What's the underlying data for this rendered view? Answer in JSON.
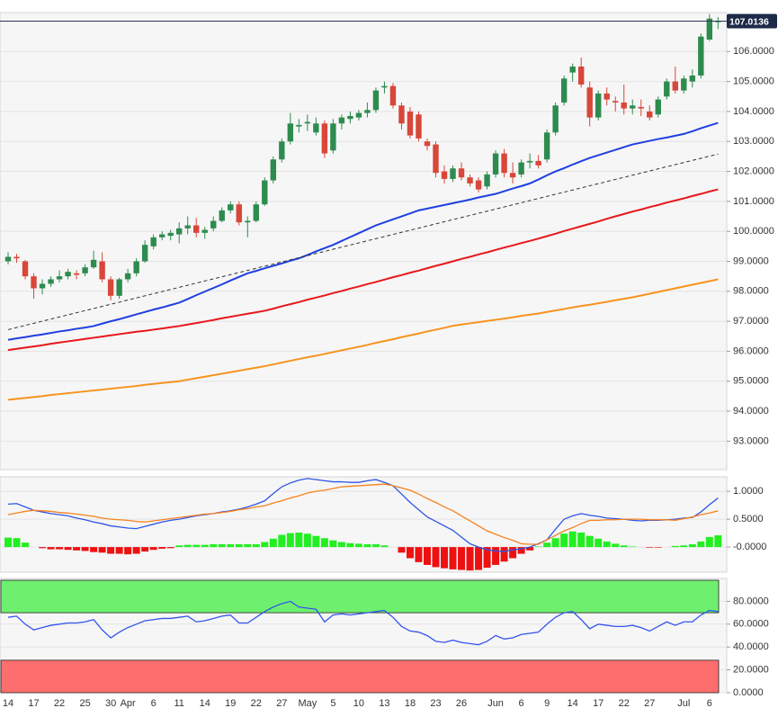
{
  "chart_data": [
    {
      "type": "candlestick",
      "open": [
        99.0,
        99.15,
        99.0,
        98.5,
        98.1,
        98.25,
        98.4,
        98.5,
        98.6,
        98.6,
        98.8,
        99.0,
        98.4,
        97.85,
        98.4,
        98.6,
        99.0,
        99.5,
        99.8,
        99.85,
        99.9,
        100.1,
        100.2,
        99.95,
        100.1,
        100.35,
        100.7,
        100.9,
        100.3,
        100.35,
        100.9,
        101.7,
        102.4,
        103.0,
        103.5,
        103.6,
        103.3,
        103.6,
        102.7,
        103.6,
        103.75,
        103.8,
        103.95,
        104.05,
        104.8,
        104.85,
        104.2,
        104.0,
        103.9,
        103.0,
        102.9,
        102.0,
        101.75,
        102.1,
        101.8,
        101.7,
        101.5,
        101.9,
        102.6,
        101.95,
        101.9,
        102.3,
        102.35,
        102.4,
        103.3,
        104.3,
        105.3,
        105.5,
        104.8,
        103.8,
        104.6,
        104.35,
        104.3,
        104.1,
        104.15,
        104.0,
        103.9,
        104.5,
        105.0,
        104.7,
        105.0,
        105.2,
        106.4,
        107.0
      ],
      "high": [
        99.3,
        99.25,
        99.05,
        98.6,
        98.4,
        98.5,
        98.7,
        98.75,
        98.7,
        98.9,
        99.35,
        99.3,
        98.5,
        98.45,
        98.75,
        99.1,
        99.7,
        99.9,
        100.0,
        100.05,
        100.3,
        100.5,
        100.45,
        100.15,
        100.5,
        100.8,
        101.0,
        101.0,
        100.5,
        101.0,
        101.8,
        102.5,
        103.1,
        103.95,
        103.75,
        103.9,
        103.8,
        103.7,
        103.75,
        103.9,
        104.0,
        104.05,
        104.3,
        104.8,
        105.0,
        104.95,
        104.3,
        104.15,
        104.0,
        103.1,
        103.0,
        102.2,
        102.2,
        102.3,
        101.9,
        101.8,
        102.0,
        102.7,
        102.75,
        102.3,
        102.4,
        102.6,
        102.55,
        103.4,
        104.3,
        105.2,
        105.6,
        105.8,
        105.0,
        104.7,
        104.8,
        104.5,
        104.9,
        104.4,
        104.4,
        104.2,
        104.5,
        105.1,
        105.5,
        105.2,
        105.4,
        106.6,
        107.25,
        107.15
      ],
      "low": [
        98.9,
        98.95,
        98.4,
        97.75,
        97.9,
        98.15,
        98.3,
        98.4,
        98.4,
        98.5,
        98.75,
        98.3,
        97.7,
        97.75,
        98.3,
        98.5,
        98.95,
        99.4,
        99.7,
        99.7,
        99.6,
        99.9,
        99.8,
        99.75,
        100.0,
        100.3,
        100.6,
        100.2,
        99.8,
        100.3,
        100.85,
        101.6,
        102.3,
        102.9,
        103.3,
        103.35,
        103.2,
        102.45,
        102.6,
        103.4,
        103.6,
        103.7,
        103.8,
        103.95,
        104.6,
        104.1,
        103.4,
        103.1,
        103.0,
        102.7,
        101.8,
        101.6,
        101.65,
        101.7,
        101.5,
        101.3,
        101.4,
        101.8,
        101.8,
        101.6,
        101.8,
        102.1,
        102.1,
        102.3,
        103.2,
        104.2,
        105.0,
        104.8,
        103.5,
        103.7,
        104.2,
        104.0,
        103.9,
        103.9,
        103.85,
        103.7,
        103.8,
        104.4,
        104.6,
        104.6,
        104.8,
        105.1,
        106.35,
        106.75
      ],
      "close": [
        99.15,
        99.1,
        98.5,
        98.1,
        98.25,
        98.4,
        98.5,
        98.65,
        98.55,
        98.8,
        99.05,
        98.4,
        97.85,
        98.4,
        98.6,
        99.0,
        99.55,
        99.8,
        99.9,
        99.95,
        100.1,
        100.2,
        99.95,
        100.05,
        100.35,
        100.7,
        100.9,
        100.3,
        100.35,
        100.9,
        101.7,
        102.4,
        103.0,
        103.6,
        103.55,
        103.65,
        103.6,
        102.6,
        103.6,
        103.8,
        103.85,
        103.95,
        104.05,
        104.7,
        104.85,
        104.2,
        103.6,
        103.2,
        103.1,
        102.85,
        101.95,
        101.75,
        102.1,
        101.8,
        101.6,
        101.4,
        101.9,
        102.6,
        101.95,
        101.8,
        102.3,
        102.35,
        102.2,
        103.3,
        104.2,
        105.1,
        105.5,
        104.9,
        103.8,
        104.6,
        104.4,
        104.3,
        104.1,
        104.2,
        104.1,
        103.8,
        104.4,
        105.0,
        104.7,
        105.1,
        105.2,
        106.5,
        107.1,
        107.01
      ],
      "up_color": "#2e8b4f",
      "down_color": "#d9463a",
      "series": [
        {
          "color": "#1f3fe0",
          "values": [
            96.38,
            96.43,
            96.47,
            96.52,
            96.56,
            96.61,
            96.66,
            96.7,
            96.75,
            96.79,
            96.84,
            96.92,
            97.0,
            97.07,
            97.15,
            97.23,
            97.31,
            97.39,
            97.46,
            97.54,
            97.62,
            97.74,
            97.87,
            97.99,
            98.11,
            98.23,
            98.36,
            98.48,
            98.6,
            98.68,
            98.77,
            98.85,
            98.93,
            99.02,
            99.1,
            99.21,
            99.33,
            99.44,
            99.55,
            99.68,
            99.81,
            99.94,
            100.07,
            100.2,
            100.3,
            100.4,
            100.5,
            100.6,
            100.7,
            100.76,
            100.82,
            100.88,
            100.94,
            101.0,
            101.06,
            101.13,
            101.19,
            101.25,
            101.34,
            101.43,
            101.51,
            101.6,
            101.73,
            101.87,
            102.0,
            102.11,
            102.23,
            102.34,
            102.45,
            102.54,
            102.63,
            102.72,
            102.81,
            102.9,
            102.96,
            103.02,
            103.08,
            103.13,
            103.19,
            103.25,
            103.34,
            103.44,
            103.53,
            103.62
          ]
        },
        {
          "color": "#e8171b",
          "values": [
            96.04,
            96.08,
            96.12,
            96.16,
            96.2,
            96.25,
            96.29,
            96.33,
            96.37,
            96.41,
            96.45,
            96.49,
            96.53,
            96.57,
            96.61,
            96.65,
            96.68,
            96.72,
            96.76,
            96.8,
            96.84,
            96.89,
            96.94,
            96.99,
            97.04,
            97.1,
            97.15,
            97.2,
            97.25,
            97.3,
            97.35,
            97.42,
            97.5,
            97.57,
            97.64,
            97.72,
            97.79,
            97.86,
            97.94,
            98.01,
            98.09,
            98.16,
            98.24,
            98.31,
            98.39,
            98.47,
            98.54,
            98.62,
            98.69,
            98.77,
            98.85,
            98.92,
            99.0,
            99.08,
            99.15,
            99.23,
            99.3,
            99.38,
            99.46,
            99.53,
            99.61,
            99.68,
            99.76,
            99.84,
            99.92,
            100.01,
            100.09,
            100.17,
            100.25,
            100.33,
            100.42,
            100.5,
            100.58,
            100.66,
            100.73,
            100.81,
            100.88,
            100.96,
            101.03,
            101.1,
            101.18,
            101.25,
            101.33,
            101.4
          ]
        },
        {
          "color": "#f7931e",
          "values": [
            94.38,
            94.41,
            94.44,
            94.47,
            94.5,
            94.54,
            94.57,
            94.6,
            94.63,
            94.66,
            94.69,
            94.72,
            94.75,
            94.78,
            94.81,
            94.84,
            94.88,
            94.91,
            94.94,
            94.97,
            95.0,
            95.05,
            95.1,
            95.15,
            95.2,
            95.25,
            95.3,
            95.35,
            95.4,
            95.45,
            95.5,
            95.56,
            95.62,
            95.68,
            95.74,
            95.8,
            95.85,
            95.91,
            95.97,
            96.03,
            96.09,
            96.15,
            96.21,
            96.28,
            96.34,
            96.4,
            96.47,
            96.53,
            96.59,
            96.66,
            96.72,
            96.78,
            96.85,
            96.89,
            96.93,
            96.97,
            97.01,
            97.05,
            97.09,
            97.13,
            97.18,
            97.22,
            97.26,
            97.31,
            97.36,
            97.41,
            97.46,
            97.51,
            97.55,
            97.6,
            97.65,
            97.7,
            97.75,
            97.8,
            97.86,
            97.92,
            97.98,
            98.04,
            98.1,
            98.16,
            98.22,
            98.28,
            98.34,
            98.4
          ]
        }
      ],
      "trendline": {
        "color": "#333333",
        "values": [
          96.72,
          102.58
        ]
      },
      "last_price": 107.0136,
      "ylim": [
        92.05,
        107.3
      ],
      "yticks": [
        {
          "value": 93,
          "label": "93.0000"
        },
        {
          "value": 94,
          "label": "94.0000"
        },
        {
          "value": 95,
          "label": "95.0000"
        },
        {
          "value": 96,
          "label": "96.0000"
        },
        {
          "value": 97,
          "label": "97.0000"
        },
        {
          "value": 98,
          "label": "98.0000"
        },
        {
          "value": 99,
          "label": "99.0000"
        },
        {
          "value": 100,
          "label": "100.0000"
        },
        {
          "value": 101,
          "label": "101.0000"
        },
        {
          "value": 102,
          "label": "102.0000"
        },
        {
          "value": 103,
          "label": "103.0000"
        },
        {
          "value": 104,
          "label": "104.0000"
        },
        {
          "value": 105,
          "label": "105.0000"
        },
        {
          "value": 106,
          "label": "106.0000"
        }
      ],
      "grid": true
    },
    {
      "type": "macd",
      "series": [
        {
          "color": "#2f55e8",
          "values": [
            0.77,
            0.78,
            0.72,
            0.66,
            0.63,
            0.6,
            0.58,
            0.56,
            0.52,
            0.49,
            0.45,
            0.42,
            0.38,
            0.36,
            0.34,
            0.33,
            0.37,
            0.41,
            0.45,
            0.48,
            0.5,
            0.53,
            0.56,
            0.58,
            0.6,
            0.63,
            0.65,
            0.68,
            0.72,
            0.77,
            0.83,
            0.96,
            1.08,
            1.15,
            1.2,
            1.23,
            1.21,
            1.19,
            1.17,
            1.17,
            1.16,
            1.16,
            1.19,
            1.21,
            1.16,
            1.1,
            0.95,
            0.8,
            0.67,
            0.54,
            0.46,
            0.38,
            0.3,
            0.18,
            0.06,
            0.0,
            -0.05,
            -0.07,
            -0.08,
            -0.05,
            -0.03,
            0.0,
            0.06,
            0.13,
            0.32,
            0.5,
            0.56,
            0.6,
            0.57,
            0.55,
            0.52,
            0.51,
            0.5,
            0.48,
            0.47,
            0.48,
            0.48,
            0.49,
            0.5,
            0.52,
            0.53,
            0.63,
            0.76,
            0.88
          ]
        },
        {
          "color": "#f7821e",
          "values": [
            0.58,
            0.61,
            0.64,
            0.66,
            0.65,
            0.64,
            0.62,
            0.61,
            0.59,
            0.57,
            0.55,
            0.52,
            0.5,
            0.49,
            0.48,
            0.46,
            0.45,
            0.47,
            0.49,
            0.51,
            0.53,
            0.55,
            0.57,
            0.59,
            0.6,
            0.62,
            0.64,
            0.67,
            0.69,
            0.72,
            0.74,
            0.79,
            0.83,
            0.88,
            0.92,
            0.97,
            1.0,
            1.02,
            1.05,
            1.08,
            1.09,
            1.1,
            1.11,
            1.12,
            1.13,
            1.1,
            1.06,
            1.02,
            0.95,
            0.87,
            0.8,
            0.72,
            0.65,
            0.56,
            0.47,
            0.38,
            0.29,
            0.23,
            0.17,
            0.12,
            0.06,
            0.05,
            0.05,
            0.13,
            0.21,
            0.29,
            0.35,
            0.42,
            0.48,
            0.48,
            0.49,
            0.49,
            0.5,
            0.5,
            0.5,
            0.49,
            0.49,
            0.49,
            0.48,
            0.51,
            0.54,
            0.58,
            0.61,
            0.65
          ]
        }
      ],
      "histogram": {
        "up_color": "#22ee22",
        "down_color": "#ee1111",
        "values": [
          0.17,
          0.16,
          0.08,
          0.0,
          -0.02,
          -0.04,
          -0.04,
          -0.05,
          -0.06,
          -0.07,
          -0.09,
          -0.1,
          -0.12,
          -0.12,
          -0.13,
          -0.12,
          -0.08,
          -0.05,
          -0.03,
          -0.02,
          0.03,
          0.04,
          0.04,
          0.04,
          0.05,
          0.05,
          0.05,
          0.05,
          0.05,
          0.05,
          0.09,
          0.15,
          0.22,
          0.25,
          0.26,
          0.24,
          0.2,
          0.16,
          0.12,
          0.09,
          0.07,
          0.06,
          0.05,
          0.05,
          0.03,
          0.0,
          -0.1,
          -0.2,
          -0.27,
          -0.32,
          -0.36,
          -0.38,
          -0.4,
          -0.41,
          -0.42,
          -0.41,
          -0.37,
          -0.32,
          -0.26,
          -0.2,
          -0.12,
          -0.06,
          0.01,
          0.08,
          0.16,
          0.24,
          0.28,
          0.26,
          0.2,
          0.15,
          0.1,
          0.06,
          0.03,
          0.01,
          0.0,
          -0.01,
          -0.01,
          0.0,
          0.02,
          0.03,
          0.05,
          0.1,
          0.18,
          0.21
        ]
      },
      "ylim": [
        -0.45,
        1.26
      ],
      "yticks": [
        {
          "value": 0,
          "label": "-0.0000"
        },
        {
          "value": 0.5,
          "label": "0.5000"
        },
        {
          "value": 1,
          "label": "1.0000"
        }
      ],
      "grid": true
    },
    {
      "type": "rsi",
      "categories": [
        "14",
        null,
        null,
        "17",
        null,
        null,
        "22",
        null,
        null,
        "25",
        null,
        null,
        "30",
        null,
        "Apr",
        null,
        null,
        "6",
        null,
        null,
        "11",
        null,
        null,
        "14",
        null,
        null,
        "19",
        null,
        null,
        "22",
        null,
        null,
        "27",
        null,
        null,
        "May",
        null,
        null,
        "5",
        null,
        null,
        "10",
        null,
        null,
        "13",
        null,
        null,
        "18",
        null,
        null,
        "23",
        null,
        null,
        "26",
        null,
        null,
        null,
        "Jun",
        null,
        null,
        "6",
        null,
        null,
        "9",
        null,
        null,
        "14",
        null,
        null,
        "17",
        null,
        null,
        "22",
        null,
        null,
        "27",
        null,
        null,
        null,
        "Jul",
        null,
        null,
        "6",
        null
      ],
      "values": [
        66,
        67,
        60,
        55,
        57,
        59,
        60,
        61,
        61,
        62,
        64,
        55,
        48,
        53,
        57,
        60,
        63,
        64,
        65,
        65,
        66,
        67,
        62,
        63,
        65,
        67,
        68,
        61,
        61,
        66,
        71,
        75,
        78,
        80,
        75,
        74,
        73,
        62,
        68,
        69,
        68,
        69,
        70,
        71,
        72,
        66,
        58,
        54,
        53,
        50,
        45,
        44,
        46,
        44,
        43,
        42,
        45,
        50,
        47,
        48,
        51,
        52,
        53,
        60,
        66,
        70,
        71,
        64,
        56,
        60,
        59,
        58,
        58,
        59,
        57,
        54,
        58,
        62,
        59,
        62,
        62,
        68,
        72,
        71
      ],
      "color": "#3355ee",
      "zones": [
        {
          "from": 70,
          "to": 100,
          "color": "#6ef06e"
        },
        {
          "from": 0,
          "to": 30,
          "color": "#ff6e6e"
        }
      ],
      "ylim": [
        0,
        100
      ],
      "yticks": [
        {
          "value": 0,
          "label": "0.0000"
        },
        {
          "value": 20,
          "label": "20.0000"
        },
        {
          "value": 40,
          "label": "40.0000"
        },
        {
          "value": 60,
          "label": "60.0000"
        },
        {
          "value": 80,
          "label": "80.0000"
        }
      ],
      "grid": true
    }
  ]
}
